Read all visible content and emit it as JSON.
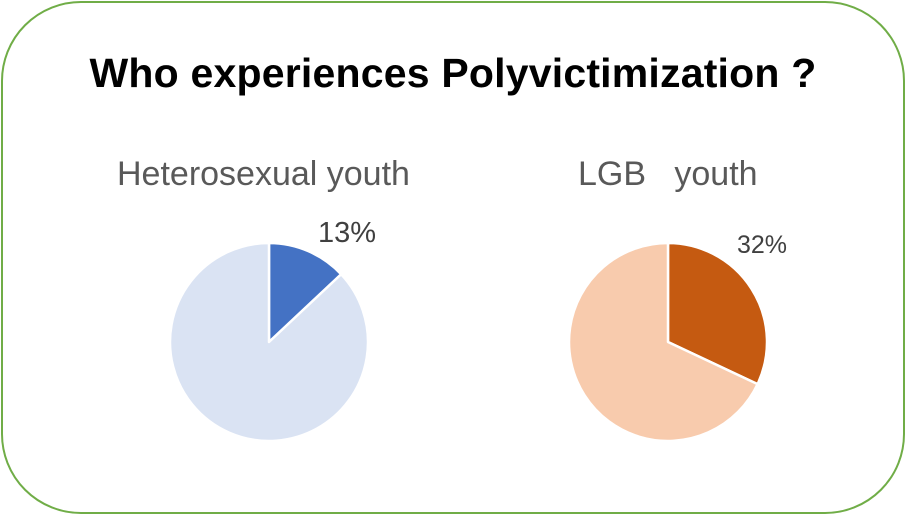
{
  "title": "Who experiences Polyvictimization ?",
  "colors": {
    "frame": "#70ad47",
    "left_highlight": "#4472c4",
    "left_rest": "#dae3f3",
    "right_highlight": "#c55a11",
    "right_rest": "#f8cbad"
  },
  "chart_data": [
    {
      "type": "pie",
      "title": "Heterosexual youth",
      "slices": [
        {
          "value": 13,
          "label": "13%"
        },
        {
          "value": 87,
          "label": ""
        }
      ]
    },
    {
      "type": "pie",
      "title": "LGB   youth",
      "slices": [
        {
          "value": 32,
          "label": "32%"
        },
        {
          "value": 68,
          "label": ""
        }
      ]
    }
  ]
}
